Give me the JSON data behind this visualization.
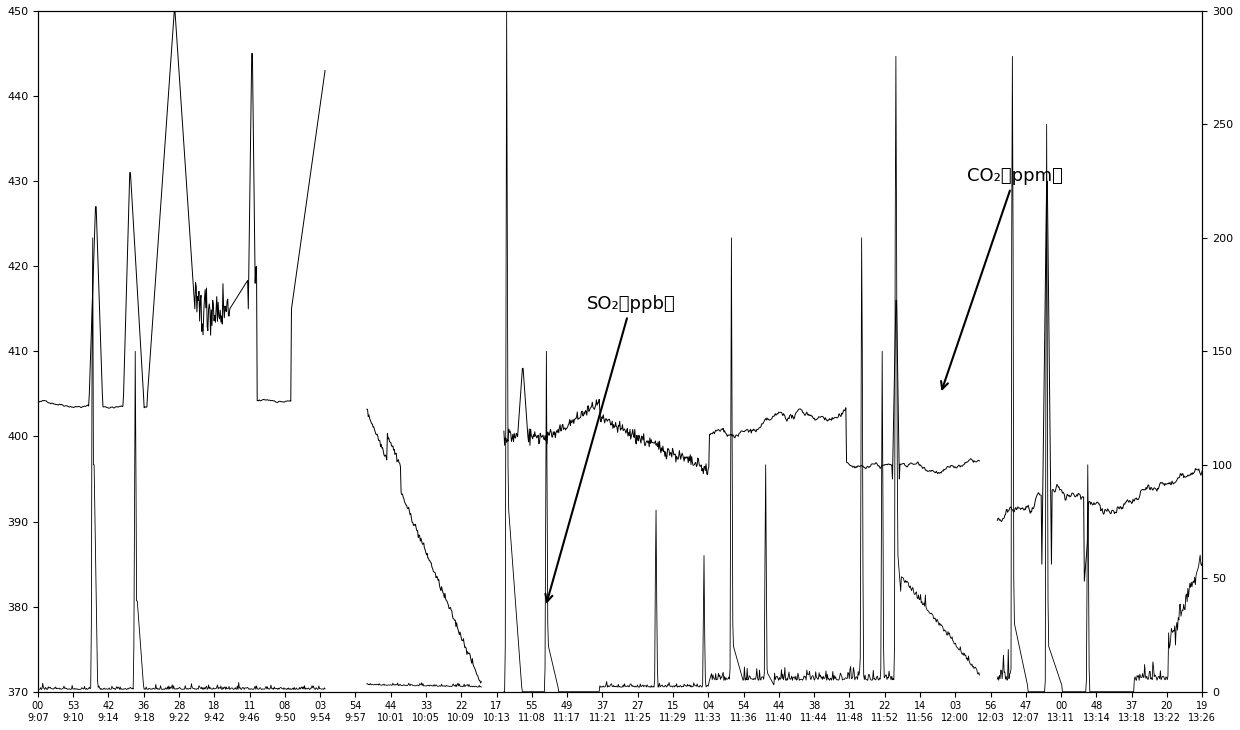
{
  "title": "",
  "left_ylabel": "",
  "right_ylabel": "",
  "left_ylim": [
    370,
    450
  ],
  "right_ylim": [
    0,
    300
  ],
  "left_yticks": [
    370,
    380,
    390,
    400,
    410,
    420,
    430,
    440,
    450
  ],
  "right_yticks": [
    0,
    50,
    100,
    150,
    200,
    250,
    300
  ],
  "co2_label": "CO₂（ppm）",
  "so2_label": "SO₂（ppb）",
  "line_color": "#000000",
  "background_color": "#ffffff",
  "tick_label_fontsize": 8,
  "annotation_fontsize": 13,
  "x_tick_labels": [
    "9:07\n00",
    "9:10\n53",
    "9:14\n42",
    "9:18\n36",
    "9:22\n28",
    "9:42\n18",
    "9:46\n11",
    "9:50\n08",
    "9:54\n03",
    "9:57\n54",
    "10:01\n44",
    "10:05\n33",
    "10:09\n22",
    "10:13\n17",
    "11:08\n55",
    "11:17\n49",
    "11:21\n37",
    "11:25\n27",
    "11:29\n15",
    "11:33\n04",
    "11:36\n54",
    "11:40\n44",
    "11:44\n38",
    "11:48\n31",
    "11:52\n22",
    "11:56\n14",
    "12:00\n03",
    "12:03\n56",
    "12:07\n47",
    "13:11\n00",
    "13:14\n48",
    "13:18\n37",
    "13:22\n20",
    "13:26\n19"
  ],
  "num_points": 1700
}
